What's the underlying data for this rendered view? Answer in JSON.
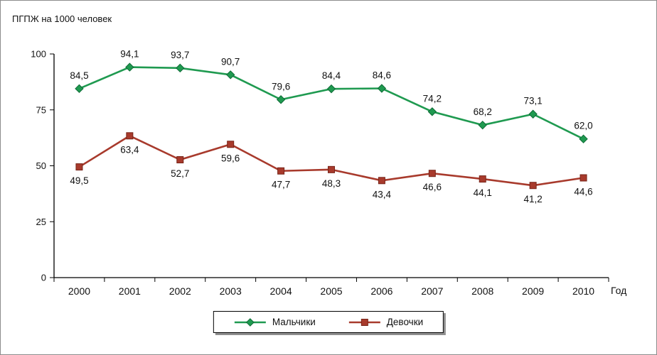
{
  "chart_data": {
    "type": "line",
    "title": "ПГПЖ на 1000 человек",
    "xlabel": "Год",
    "ylabel": "",
    "categories": [
      "2000",
      "2001",
      "2002",
      "2003",
      "2004",
      "2005",
      "2006",
      "2007",
      "2008",
      "2009",
      "2010"
    ],
    "series": [
      {
        "name": "Мальчики",
        "marker": "diamond",
        "color": "#1f9a50",
        "edge": "#0e6b36",
        "label_position": "above",
        "values": [
          84.5,
          94.1,
          93.7,
          90.7,
          79.6,
          84.4,
          84.6,
          74.2,
          68.2,
          73.1,
          62.0
        ],
        "labels": [
          "84,5",
          "94,1",
          "93,7",
          "90,7",
          "79,6",
          "84,4",
          "84,6",
          "74,2",
          "68,2",
          "73,1",
          "62,0"
        ]
      },
      {
        "name": "Девочки",
        "marker": "square",
        "color": "#a83a2c",
        "edge": "#772418",
        "label_position": "below",
        "values": [
          49.5,
          63.4,
          52.7,
          59.6,
          47.7,
          48.3,
          43.4,
          46.6,
          44.1,
          41.2,
          44.6
        ],
        "labels": [
          "49,5",
          "63,4",
          "52,7",
          "59,6",
          "47,7",
          "48,3",
          "43,4",
          "46,6",
          "44,1",
          "41,2",
          "44,6"
        ]
      }
    ],
    "y_ticks": [
      0,
      25,
      50,
      75,
      100
    ],
    "ylim": [
      0,
      100
    ],
    "grid": false,
    "legend_position": "bottom",
    "axis_color": "#000000"
  }
}
